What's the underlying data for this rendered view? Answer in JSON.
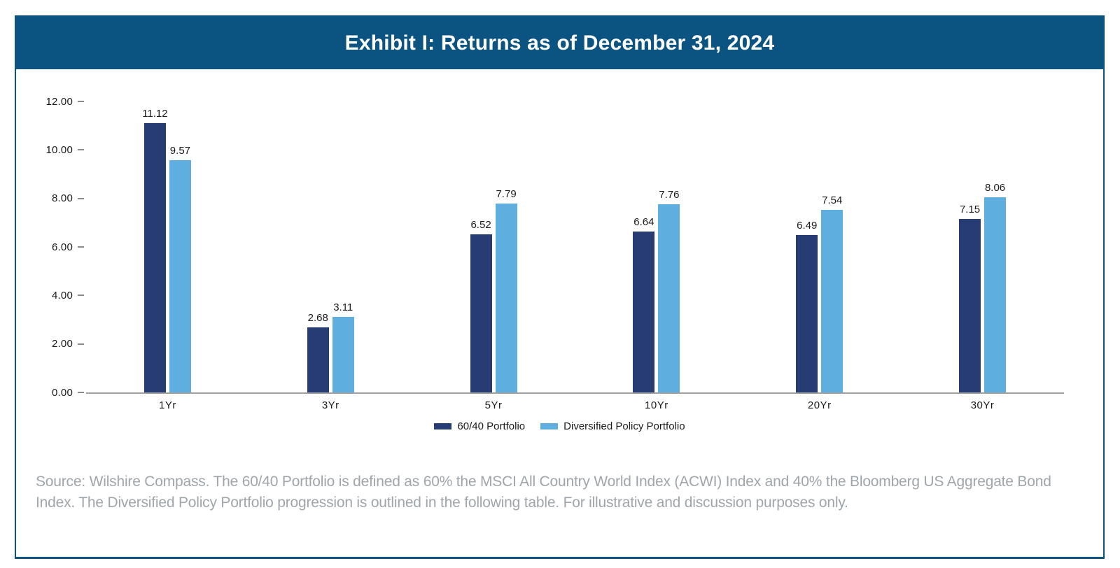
{
  "header": {
    "title": "Exhibit I: Returns as of December 31, 2024"
  },
  "chart_data": {
    "type": "bar",
    "title": "Exhibit I: Returns as of December 31, 2024",
    "categories": [
      "1Yr",
      "3Yr",
      "5Yr",
      "10Yr",
      "20Yr",
      "30Yr"
    ],
    "series": [
      {
        "name": "60/40 Portfolio",
        "color": "#263c72",
        "values": [
          11.12,
          2.68,
          6.52,
          6.64,
          6.49,
          7.15
        ]
      },
      {
        "name": "Diversified Policy Portfolio",
        "color": "#5faee0",
        "values": [
          9.57,
          3.11,
          7.79,
          7.76,
          7.54,
          8.06
        ]
      }
    ],
    "xlabel": "",
    "ylabel": "",
    "ylim": [
      0,
      12
    ],
    "yticks": [
      "0.00",
      "2.00",
      "4.00",
      "6.00",
      "8.00",
      "10.00",
      "12.00"
    ],
    "grid": false,
    "value_labels": true,
    "legend_position": "bottom"
  },
  "footer": {
    "source": "Source: Wilshire Compass. The 60/40 Portfolio is defined as 60% the MSCI All Country World Index (ACWI) Index and 40% the Bloomberg US Aggregate Bond Index. The Diversified Policy Portfolio progression is outlined in the following table. For illustrative and discussion purposes only."
  },
  "colors": {
    "title_bar": "#0b5380",
    "frame_border": "#0b5380",
    "axis_line": "#a0a0a0",
    "tick_text": "#1a1a1a",
    "source_text": "#9fa6ab"
  }
}
